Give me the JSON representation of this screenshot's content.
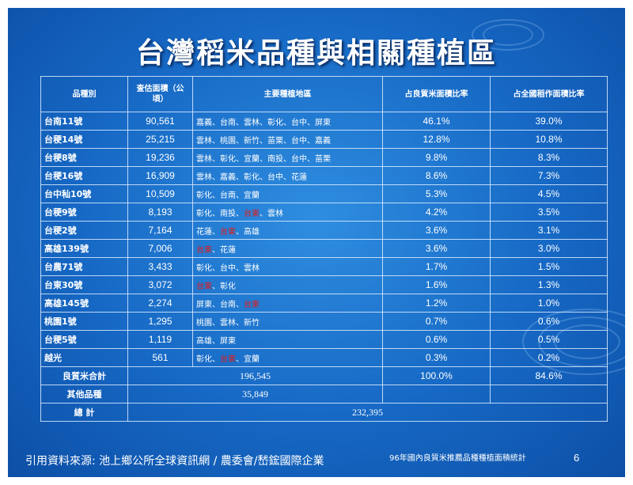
{
  "title": "台灣稻米品種與相關種植區",
  "table": {
    "headers": [
      "品種別",
      "查估面積（公頃）",
      "主要種植地區",
      "占良質米面積比率",
      "占全國稻作面積比率"
    ],
    "rows": [
      {
        "variety": "台南11號",
        "area": "90,561",
        "regions": [
          {
            "t": "嘉義、台南、雲林、彰化、台中、屏東",
            "h": false
          }
        ],
        "ratio_quality": "46.1%",
        "ratio_national": "39.0%"
      },
      {
        "variety": "台稉14號",
        "area": "25,215",
        "regions": [
          {
            "t": "雲林、桃園、新竹、苗栗、台中、嘉義",
            "h": false
          }
        ],
        "ratio_quality": "12.8%",
        "ratio_national": "10.8%"
      },
      {
        "variety": "台稉8號",
        "area": "19,236",
        "regions": [
          {
            "t": "雲林、彰化、宜蘭、南投、台中、苗栗",
            "h": false
          }
        ],
        "ratio_quality": "9.8%",
        "ratio_national": "8.3%"
      },
      {
        "variety": "台稉16號",
        "area": "16,909",
        "regions": [
          {
            "t": "雲林、嘉義、彰化、台中、花蓮",
            "h": false
          }
        ],
        "ratio_quality": "8.6%",
        "ratio_national": "7.3%"
      },
      {
        "variety": "台中秈10號",
        "area": "10,509",
        "regions": [
          {
            "t": "彰化、台南、宜蘭",
            "h": false
          }
        ],
        "ratio_quality": "5.3%",
        "ratio_national": "4.5%"
      },
      {
        "variety": "台稉9號",
        "area": "8,193",
        "regions": [
          {
            "t": "彰化、南投、",
            "h": false
          },
          {
            "t": "台東",
            "h": true
          },
          {
            "t": "、雲林",
            "h": false
          }
        ],
        "ratio_quality": "4.2%",
        "ratio_national": "3.5%"
      },
      {
        "variety": "台稉2號",
        "area": "7,164",
        "regions": [
          {
            "t": "花蓮、",
            "h": false
          },
          {
            "t": "台東",
            "h": true
          },
          {
            "t": "、高雄",
            "h": false
          }
        ],
        "ratio_quality": "3.6%",
        "ratio_national": "3.1%"
      },
      {
        "variety": "高雄139號",
        "area": "7,006",
        "regions": [
          {
            "t": "台東",
            "h": true
          },
          {
            "t": "、花蓮",
            "h": false
          }
        ],
        "ratio_quality": "3.6%",
        "ratio_national": "3.0%"
      },
      {
        "variety": "台農71號",
        "area": "3,433",
        "regions": [
          {
            "t": "彰化、台中、雲林",
            "h": false
          }
        ],
        "ratio_quality": "1.7%",
        "ratio_national": "1.5%"
      },
      {
        "variety": "台東30號",
        "area": "3,072",
        "regions": [
          {
            "t": "台東",
            "h": true
          },
          {
            "t": "、彰化",
            "h": false
          }
        ],
        "ratio_quality": "1.6%",
        "ratio_national": "1.3%"
      },
      {
        "variety": "高雄145號",
        "area": "2,274",
        "regions": [
          {
            "t": "屏東、台南、",
            "h": false
          },
          {
            "t": "台東",
            "h": true
          }
        ],
        "ratio_quality": "1.2%",
        "ratio_national": "1.0%"
      },
      {
        "variety": "桃園1號",
        "area": "1,295",
        "regions": [
          {
            "t": "桃園、雲林、新竹",
            "h": false
          }
        ],
        "ratio_quality": "0.7%",
        "ratio_national": "0.6%"
      },
      {
        "variety": "台稉5號",
        "area": "1,119",
        "regions": [
          {
            "t": "高雄、屏東",
            "h": false
          }
        ],
        "ratio_quality": "0.6%",
        "ratio_national": "0.5%"
      },
      {
        "variety": "越光",
        "area": "561",
        "regions": [
          {
            "t": "彰化、",
            "h": false
          },
          {
            "t": "台東",
            "h": true
          },
          {
            "t": "、宜蘭",
            "h": false
          }
        ],
        "ratio_quality": "0.3%",
        "ratio_national": "0.2%"
      }
    ],
    "subtotal": {
      "label": "良質米合計",
      "area": "196,545",
      "ratio_quality": "100.0%",
      "ratio_national": "84.6%"
    },
    "others": {
      "label": "其他品種",
      "area": "35,849"
    },
    "total": {
      "label": "總 計",
      "area": "232,395"
    }
  },
  "footer": {
    "source": "引用資料來源:  池上鄉公所全球資訊網 / 農委會/嵆鋐國際企業",
    "note": "96年國內良質米推薦品種種植面積統計",
    "page": "6"
  },
  "colors": {
    "background": "#1668c4",
    "highlight": "#e21b1b"
  }
}
